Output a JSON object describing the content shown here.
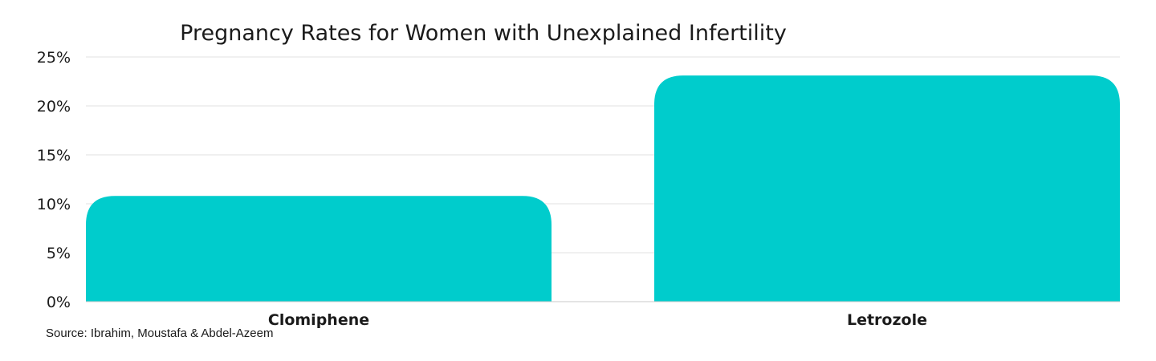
{
  "chart_data": {
    "type": "bar",
    "title": "Pregnancy Rates for Women with Unexplained Infertility",
    "categories": [
      "Clomiphene",
      "Letrozole"
    ],
    "values": [
      10.8,
      23.1
    ],
    "unit": "%",
    "ylim": [
      0,
      25
    ],
    "yticks": [
      0,
      5,
      10,
      15,
      20,
      25
    ],
    "ytick_labels": [
      "0%",
      "5%",
      "10%",
      "15%",
      "20%",
      "25%"
    ],
    "xlabel": "",
    "ylabel": "",
    "grid": true,
    "legend": "none",
    "bar_color": "#00cccc"
  },
  "source": "Source: Ibrahim, Moustafa & Abdel-Azeem"
}
